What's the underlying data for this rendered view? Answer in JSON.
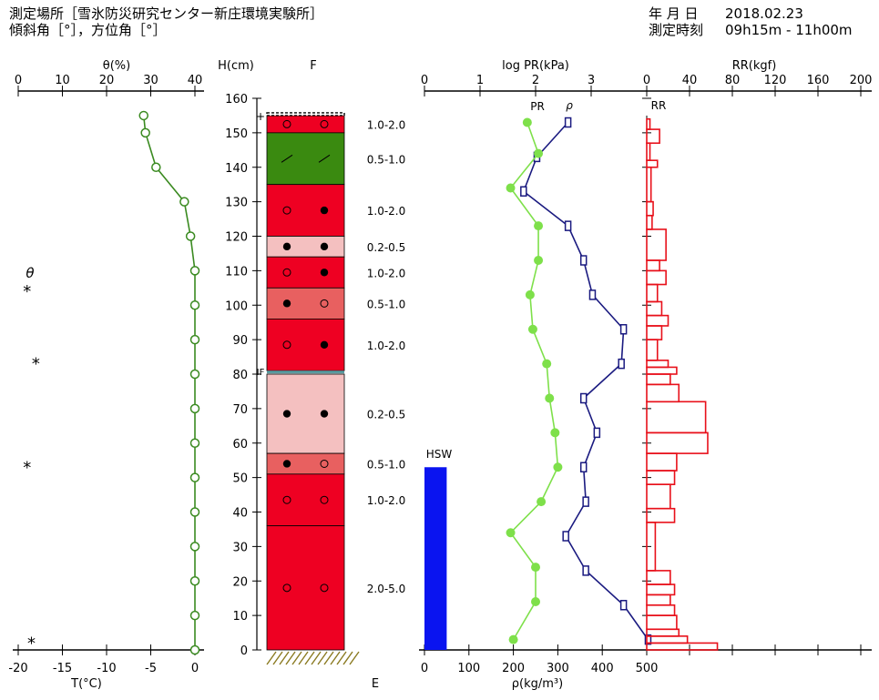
{
  "header": {
    "site": "測定場所［雪氷防災研究センター新庄環境実験所］",
    "angles": "傾斜角［°］，方位角［°］",
    "date_label": "年 月 日",
    "date_value": "2018.02.23",
    "time_label": "測定時刻",
    "time_value": "09h15m - 11h00m"
  },
  "chart_data": {
    "type": "snow-pit-profile",
    "panels": {
      "theta_temp": {
        "theta_title": "θ(%)",
        "theta_ticks": [
          0,
          10,
          20,
          30,
          40
        ],
        "theta_range": [
          0,
          40
        ],
        "temp_xlabel": "T(°C)",
        "temp_ticks": [
          -20,
          -15,
          -10,
          -5,
          0
        ],
        "temp_range": [
          -20,
          0
        ],
        "theta_legend": "θ",
        "temperature": [
          {
            "h": 155,
            "t": -5.8
          },
          {
            "h": 150,
            "t": -5.6
          },
          {
            "h": 140,
            "t": -4.4
          },
          {
            "h": 130,
            "t": -1.2
          },
          {
            "h": 120,
            "t": -0.5
          },
          {
            "h": 110,
            "t": 0
          },
          {
            "h": 100,
            "t": 0
          },
          {
            "h": 90,
            "t": 0
          },
          {
            "h": 80,
            "t": 0
          },
          {
            "h": 70,
            "t": 0
          },
          {
            "h": 60,
            "t": 0
          },
          {
            "h": 50,
            "t": 0
          },
          {
            "h": 40,
            "t": 0
          },
          {
            "h": 30,
            "t": 0
          },
          {
            "h": 20,
            "t": 0
          },
          {
            "h": 10,
            "t": 0
          },
          {
            "h": 0,
            "t": 0
          }
        ],
        "theta_points": [
          {
            "h": 104,
            "theta": 2
          },
          {
            "h": 83,
            "theta": 4
          },
          {
            "h": 53,
            "theta": 2
          },
          {
            "h": 2,
            "theta": 3
          }
        ]
      },
      "height_axis": {
        "label": "H(cm)",
        "ticks": [
          0,
          10,
          20,
          30,
          40,
          50,
          60,
          70,
          80,
          90,
          100,
          110,
          120,
          130,
          140,
          150,
          160
        ],
        "range": [
          0,
          160
        ],
        "marker_top": "+",
        "marker_if": "IF"
      },
      "stratigraphy": {
        "label_top": "F",
        "label_bottom": "E",
        "layers": [
          {
            "top": 155,
            "bottom": 150,
            "color": "#ee0022",
            "g1": "open",
            "g2": "open",
            "size": "1.0-2.0"
          },
          {
            "top": 150,
            "bottom": 135,
            "color": "#3a8a10",
            "g1": "slash",
            "g2": "slash",
            "size": "0.5-1.0"
          },
          {
            "top": 135,
            "bottom": 120,
            "color": "#ee0022",
            "g1": "open",
            "g2": "filled",
            "size": "1.0-2.0"
          },
          {
            "top": 120,
            "bottom": 114,
            "color": "#f4c0c0",
            "g1": "filled",
            "g2": "filled",
            "size": "0.2-0.5"
          },
          {
            "top": 114,
            "bottom": 105,
            "color": "#ee0022",
            "g1": "open",
            "g2": "filled",
            "size": "1.0-2.0"
          },
          {
            "top": 105,
            "bottom": 96,
            "color": "#e86060",
            "g1": "filled",
            "g2": "open",
            "size": "0.5-1.0"
          },
          {
            "top": 96,
            "bottom": 81,
            "color": "#ee0022",
            "g1": "open",
            "g2": "filled",
            "size": "1.0-2.0"
          },
          {
            "top": 80,
            "bottom": 57,
            "color": "#f4c0c0",
            "g1": "filled",
            "g2": "filled",
            "size": "0.2-0.5"
          },
          {
            "top": 57,
            "bottom": 51,
            "color": "#e86060",
            "g1": "filled",
            "g2": "open",
            "size": "0.5-1.0"
          },
          {
            "top": 51,
            "bottom": 36,
            "color": "#ee0022",
            "g1": "open",
            "g2": "open",
            "size": "1.0-2.0"
          },
          {
            "top": 36,
            "bottom": 0,
            "color": "#ee0022",
            "g1": "open",
            "g2": "open",
            "size": "2.0-5.0"
          }
        ]
      },
      "density_pr": {
        "pr_title": "log PR(kPa)",
        "pr_ticks": [
          0,
          1,
          2,
          3
        ],
        "pr_range": [
          0,
          4
        ],
        "rho_xlabel": "ρ(kg/m³)",
        "rho_ticks": [
          0,
          100,
          200,
          300,
          400,
          500
        ],
        "rho_range": [
          0,
          500
        ],
        "pr_series_label": "PR",
        "rho_series_label": "ρ",
        "hsw_label": "HSW",
        "hsw": {
          "rho_from": 0,
          "rho_to": 50,
          "h_top": 53,
          "h_bottom": 0
        },
        "pr": [
          {
            "h": 153,
            "pr": 1.85
          },
          {
            "h": 144,
            "pr": 2.05
          },
          {
            "h": 134,
            "pr": 1.55
          },
          {
            "h": 123,
            "pr": 2.05
          },
          {
            "h": 113,
            "pr": 2.05
          },
          {
            "h": 103,
            "pr": 1.9
          },
          {
            "h": 93,
            "pr": 1.95
          },
          {
            "h": 83,
            "pr": 2.2
          },
          {
            "h": 73,
            "pr": 2.25
          },
          {
            "h": 63,
            "pr": 2.35
          },
          {
            "h": 53,
            "pr": 2.4
          },
          {
            "h": 43,
            "pr": 2.1
          },
          {
            "h": 34,
            "pr": 1.55
          },
          {
            "h": 24,
            "pr": 2.0
          },
          {
            "h": 14,
            "pr": 2.0
          },
          {
            "h": 3,
            "pr": 1.6
          }
        ],
        "rho": [
          {
            "h": 153,
            "rho": 323
          },
          {
            "h": 143,
            "rho": 253
          },
          {
            "h": 133,
            "rho": 223
          },
          {
            "h": 123,
            "rho": 323
          },
          {
            "h": 113,
            "rho": 358
          },
          {
            "h": 103,
            "rho": 378
          },
          {
            "h": 93,
            "rho": 448
          },
          {
            "h": 83,
            "rho": 443
          },
          {
            "h": 73,
            "rho": 358
          },
          {
            "h": 63,
            "rho": 388
          },
          {
            "h": 53,
            "rho": 358
          },
          {
            "h": 43,
            "rho": 363
          },
          {
            "h": 33,
            "rho": 318
          },
          {
            "h": 23,
            "rho": 363
          },
          {
            "h": 13,
            "rho": 448
          },
          {
            "h": 3,
            "rho": 503
          }
        ]
      },
      "ram": {
        "title": "RR(kgf)",
        "series_label": "RR",
        "ticks": [
          0,
          40,
          80,
          120,
          160,
          200
        ],
        "range": [
          0,
          200
        ],
        "segments": [
          {
            "top": 154,
            "bottom": 151,
            "v": 3
          },
          {
            "top": 151,
            "bottom": 147,
            "v": 12
          },
          {
            "top": 147,
            "bottom": 142,
            "v": 3
          },
          {
            "top": 142,
            "bottom": 140,
            "v": 10
          },
          {
            "top": 140,
            "bottom": 130,
            "v": 4
          },
          {
            "top": 130,
            "bottom": 126,
            "v": 6
          },
          {
            "top": 126,
            "bottom": 122,
            "v": 5
          },
          {
            "top": 122,
            "bottom": 113,
            "v": 18
          },
          {
            "top": 113,
            "bottom": 110,
            "v": 12
          },
          {
            "top": 110,
            "bottom": 106,
            "v": 18
          },
          {
            "top": 106,
            "bottom": 101,
            "v": 10
          },
          {
            "top": 101,
            "bottom": 97,
            "v": 14
          },
          {
            "top": 97,
            "bottom": 94,
            "v": 20
          },
          {
            "top": 94,
            "bottom": 90,
            "v": 14
          },
          {
            "top": 90,
            "bottom": 84,
            "v": 10
          },
          {
            "top": 84,
            "bottom": 82,
            "v": 20
          },
          {
            "top": 82,
            "bottom": 80,
            "v": 28
          },
          {
            "top": 80,
            "bottom": 77,
            "v": 22
          },
          {
            "top": 77,
            "bottom": 72,
            "v": 30
          },
          {
            "top": 72,
            "bottom": 63,
            "v": 55
          },
          {
            "top": 63,
            "bottom": 57,
            "v": 57
          },
          {
            "top": 57,
            "bottom": 52,
            "v": 28
          },
          {
            "top": 52,
            "bottom": 48,
            "v": 26
          },
          {
            "top": 48,
            "bottom": 41,
            "v": 22
          },
          {
            "top": 41,
            "bottom": 37,
            "v": 26
          },
          {
            "top": 37,
            "bottom": 23,
            "v": 8
          },
          {
            "top": 23,
            "bottom": 19,
            "v": 22
          },
          {
            "top": 19,
            "bottom": 16,
            "v": 26
          },
          {
            "top": 16,
            "bottom": 13,
            "v": 22
          },
          {
            "top": 13,
            "bottom": 10,
            "v": 26
          },
          {
            "top": 10,
            "bottom": 6,
            "v": 28
          },
          {
            "top": 6,
            "bottom": 4,
            "v": 30
          },
          {
            "top": 4,
            "bottom": 2,
            "v": 38
          },
          {
            "top": 2,
            "bottom": 0,
            "v": 66
          }
        ]
      }
    }
  }
}
